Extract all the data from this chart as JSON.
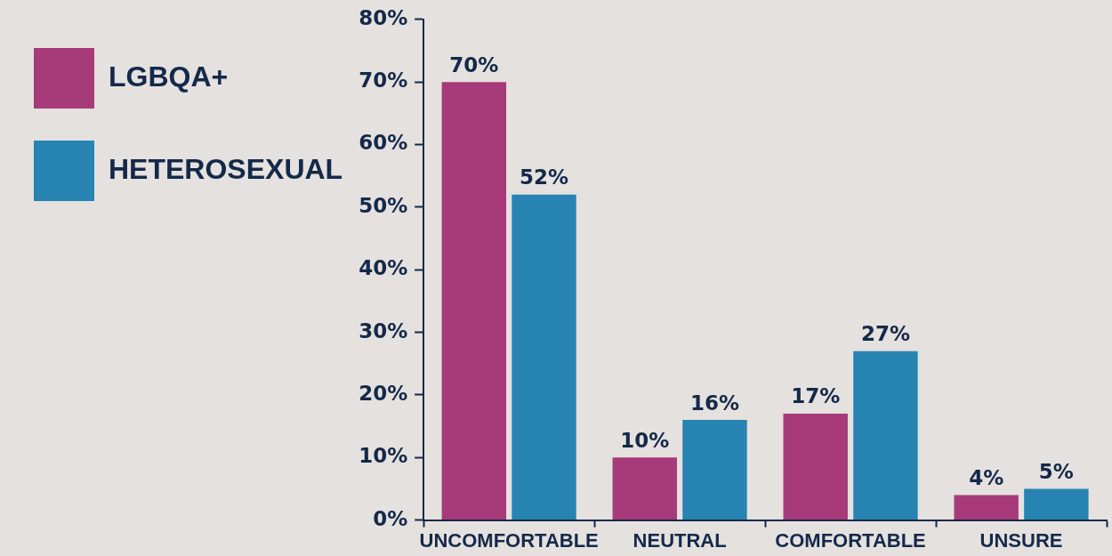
{
  "chart_data": {
    "type": "bar",
    "categories": [
      "UNCOMFORTABLE",
      "NEUTRAL",
      "COMFORTABLE",
      "UNSURE"
    ],
    "series": [
      {
        "name": "LGBQA+",
        "color": "#a73a79",
        "values": [
          70,
          10,
          17,
          4
        ],
        "value_labels": [
          "70%",
          "10%",
          "17%",
          "4%"
        ]
      },
      {
        "name": "HETEROSEXUAL",
        "color": "#2783b1",
        "values": [
          52,
          16,
          27,
          5
        ],
        "value_labels": [
          "52%",
          "16%",
          "27%",
          "5%"
        ]
      }
    ],
    "ylim": [
      0,
      80
    ],
    "yticks": [
      {
        "value": 0,
        "label": "0%"
      },
      {
        "value": 10,
        "label": "10%"
      },
      {
        "value": 20,
        "label": "20%"
      },
      {
        "value": 30,
        "label": "30%"
      },
      {
        "value": 40,
        "label": "40%"
      },
      {
        "value": 50,
        "label": "50%"
      },
      {
        "value": 60,
        "label": "60%"
      },
      {
        "value": 70,
        "label": "70%"
      },
      {
        "value": 80,
        "label": "80%"
      }
    ],
    "grid": false,
    "legend": "top left"
  }
}
